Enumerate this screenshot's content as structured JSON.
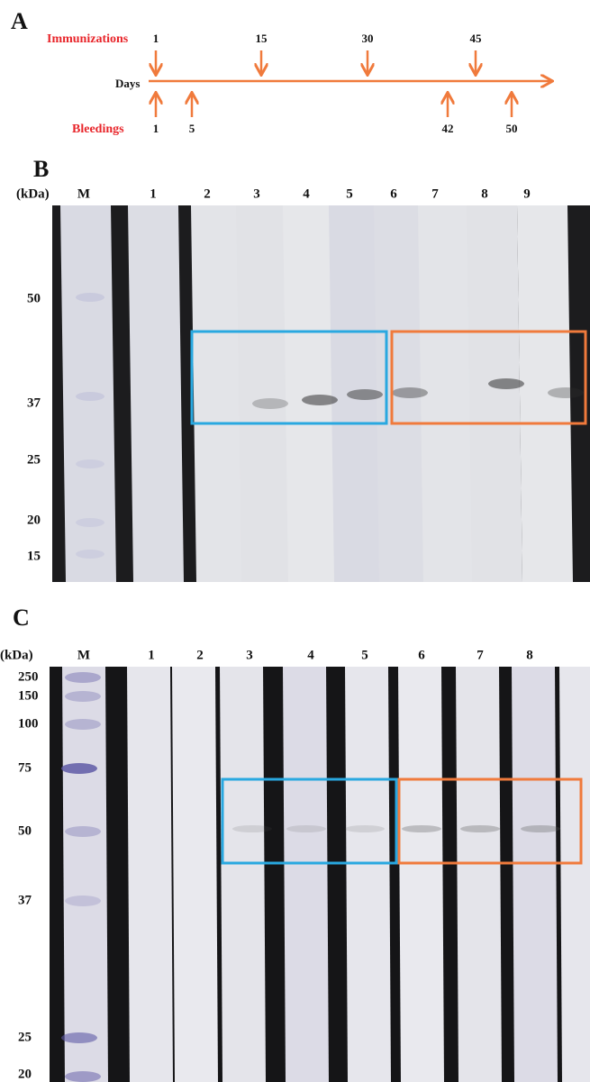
{
  "panel_a": {
    "label": "A",
    "immunizations": {
      "label": "Immunizations",
      "days": [
        1,
        15,
        30,
        45
      ]
    },
    "axis_label": "Days",
    "bleedings": {
      "label": "Bleedings",
      "days": [
        1,
        5,
        42,
        50
      ]
    }
  },
  "panel_b": {
    "label": "B",
    "unit": "(kDa)",
    "lanes": [
      "M",
      "1",
      "2",
      "3",
      "4",
      "5",
      "6",
      "7",
      "8",
      "9"
    ],
    "markers": [
      50,
      37,
      25,
      20,
      15
    ]
  },
  "panel_c": {
    "label": "C",
    "unit": "(kDa)",
    "lanes": [
      "M",
      "1",
      "2",
      "3",
      "4",
      "5",
      "6",
      "7",
      "8"
    ],
    "markers": [
      250,
      150,
      100,
      75,
      50,
      37,
      25,
      20
    ]
  }
}
